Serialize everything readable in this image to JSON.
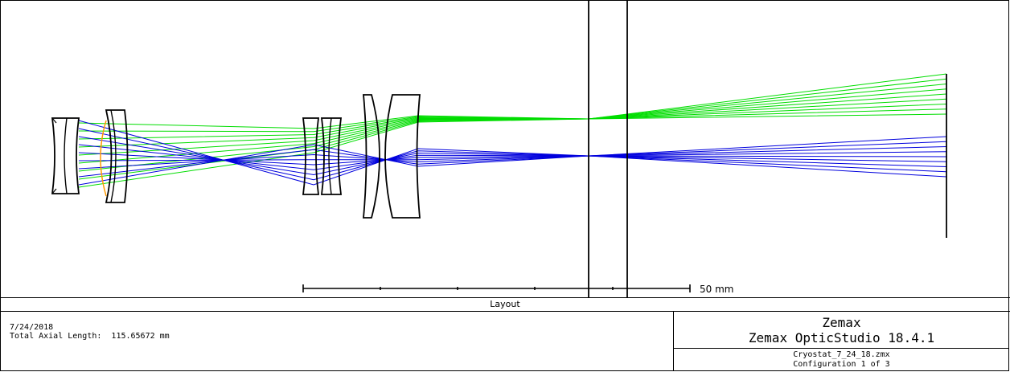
{
  "layout_title": "Layout",
  "scale_bar": {
    "label": "50 mm"
  },
  "info": {
    "date": "7/24/2018",
    "total_axial_length": "Total Axial Length:  115.65672 mm"
  },
  "vendor": {
    "brand": "Zemax",
    "product": "Zemax OpticStudio 18.4.1"
  },
  "file": {
    "name": "Cryostat_7_24_18.zmx",
    "configuration": "Configuration 1 of 3"
  },
  "colors": {
    "field_1_rays": "#00dd00",
    "field_2_rays": "#0000dd",
    "stop_surface": "#ff9900",
    "outline": "#000000"
  },
  "icons": [
    "lens-element",
    "stop-surface",
    "image-plane",
    "window",
    "scale-bar"
  ]
}
